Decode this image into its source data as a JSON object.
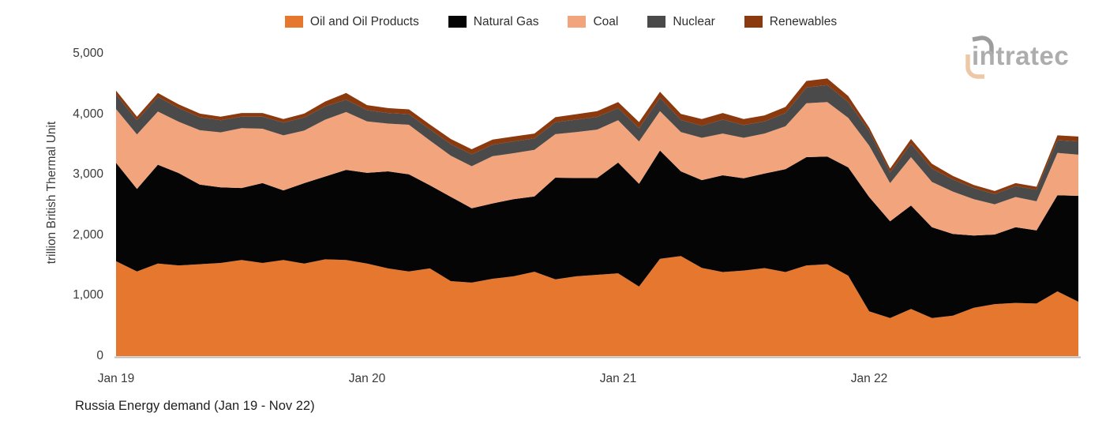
{
  "logo": {
    "text": "intratec",
    "text_color": "#adadad",
    "arc_top_color": "#9d9d9d",
    "arc_bottom_color": "#ecc8a6"
  },
  "chart_data": {
    "type": "area",
    "stacked": true,
    "title": "",
    "caption": "Russia Energy demand (Jan 19 - Nov 22)",
    "xlabel": "",
    "ylabel": "trillion British Thermal Unit",
    "ylim": [
      0,
      5000
    ],
    "grid": false,
    "legend_position": "top",
    "x": [
      "Jan 19",
      "Feb 19",
      "Mar 19",
      "Apr 19",
      "May 19",
      "Jun 19",
      "Jul 19",
      "Aug 19",
      "Sep 19",
      "Oct 19",
      "Nov 19",
      "Dec 19",
      "Jan 20",
      "Feb 20",
      "Mar 20",
      "Apr 20",
      "May 20",
      "Jun 20",
      "Jul 20",
      "Aug 20",
      "Sep 20",
      "Oct 20",
      "Nov 20",
      "Dec 20",
      "Jan 21",
      "Feb 21",
      "Mar 21",
      "Apr 21",
      "May 21",
      "Jun 21",
      "Jul 21",
      "Aug 21",
      "Sep 21",
      "Oct 21",
      "Nov 21",
      "Dec 21",
      "Jan 22",
      "Feb 22",
      "Mar 22",
      "Apr 22",
      "May 22",
      "Jun 22",
      "Jul 22",
      "Aug 22",
      "Sep 22",
      "Oct 22",
      "Nov 22"
    ],
    "x_ticks": [
      {
        "index": 0,
        "label": "Jan 19"
      },
      {
        "index": 12,
        "label": "Jan 20"
      },
      {
        "index": 24,
        "label": "Jan 21"
      },
      {
        "index": 36,
        "label": "Jan 22"
      }
    ],
    "y_ticks": [
      {
        "value": 0,
        "label": "0"
      },
      {
        "value": 1000,
        "label": "1,000"
      },
      {
        "value": 2000,
        "label": "2,000"
      },
      {
        "value": 3000,
        "label": "3,000"
      },
      {
        "value": 4000,
        "label": "4,000"
      },
      {
        "value": 5000,
        "label": "5,000"
      }
    ],
    "series": [
      {
        "name": "Oil and Oil Products",
        "color": "#e5772e",
        "values": [
          1570,
          1400,
          1530,
          1500,
          1520,
          1540,
          1590,
          1540,
          1590,
          1530,
          1600,
          1590,
          1530,
          1450,
          1400,
          1450,
          1240,
          1215,
          1280,
          1320,
          1395,
          1270,
          1320,
          1345,
          1370,
          1150,
          1610,
          1655,
          1460,
          1390,
          1415,
          1455,
          1390,
          1500,
          1520,
          1330,
          740,
          630,
          780,
          630,
          670,
          800,
          860,
          880,
          870,
          1070,
          900
        ]
      },
      {
        "name": "Natural Gas",
        "color": "#050505",
        "values": [
          1625,
          1365,
          1635,
          1525,
          1315,
          1250,
          1190,
          1320,
          1150,
          1330,
          1370,
          1490,
          1500,
          1605,
          1605,
          1375,
          1395,
          1230,
          1245,
          1275,
          1245,
          1680,
          1625,
          1600,
          1830,
          1700,
          1790,
          1400,
          1450,
          1600,
          1525,
          1565,
          1700,
          1790,
          1780,
          1790,
          1890,
          1600,
          1710,
          1500,
          1350,
          1195,
          1150,
          1250,
          1210,
          1590,
          1750
        ]
      },
      {
        "name": "Coal",
        "color": "#f2a47c",
        "values": [
          890,
          900,
          880,
          850,
          900,
          910,
          990,
          900,
          910,
          870,
          940,
          955,
          850,
          790,
          820,
          740,
          680,
          695,
          780,
          760,
          770,
          720,
          760,
          800,
          700,
          700,
          650,
          650,
          700,
          690,
          670,
          660,
          710,
          890,
          900,
          820,
          850,
          630,
          800,
          750,
          700,
          600,
          500,
          500,
          480,
          700,
          680
        ]
      },
      {
        "name": "Nuclear",
        "color": "#4a4a4a",
        "values": [
          240,
          235,
          240,
          225,
          215,
          200,
          190,
          200,
          210,
          215,
          220,
          205,
          185,
          175,
          175,
          185,
          190,
          195,
          190,
          195,
          190,
          195,
          205,
          210,
          200,
          220,
          220,
          200,
          200,
          230,
          210,
          200,
          220,
          260,
          280,
          260,
          240,
          175,
          220,
          220,
          200,
          185,
          170,
          180,
          190,
          210,
          220
        ]
      },
      {
        "name": "Renewables",
        "color": "#8b3a0f",
        "values": [
          65,
          60,
          65,
          60,
          60,
          60,
          60,
          60,
          60,
          65,
          80,
          110,
          85,
          80,
          80,
          80,
          85,
          85,
          85,
          80,
          80,
          85,
          90,
          95,
          100,
          100,
          100,
          100,
          110,
          110,
          100,
          100,
          100,
          110,
          110,
          100,
          60,
          65,
          80,
          80,
          60,
          50,
          50,
          50,
          50,
          80,
          80
        ]
      }
    ]
  }
}
